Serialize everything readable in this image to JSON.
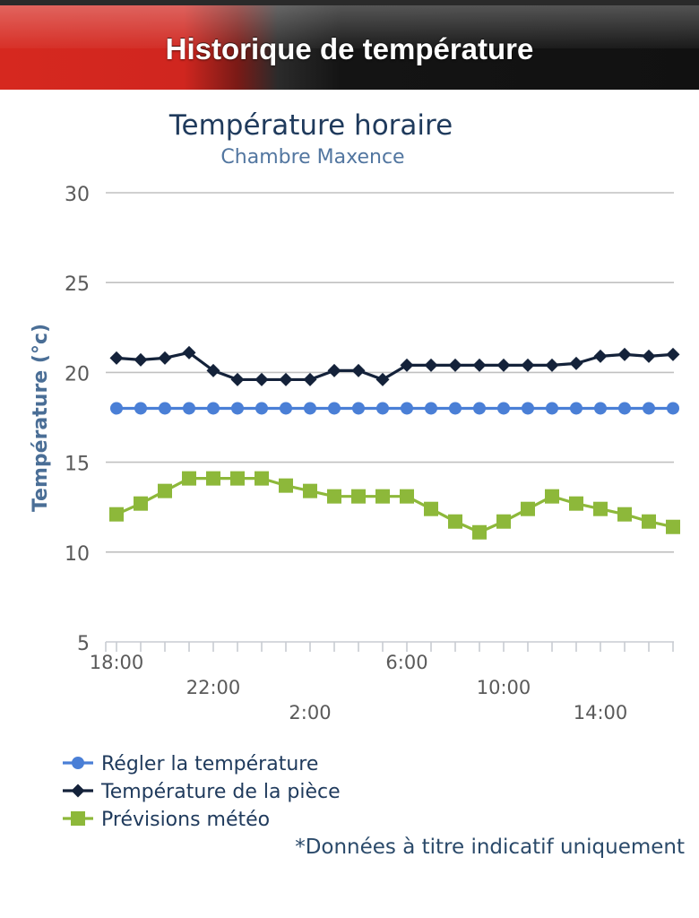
{
  "header": {
    "title": "Historique de température"
  },
  "chart_data": {
    "type": "line",
    "title": "Température horaire",
    "subtitle": "Chambre Maxence",
    "xlabel": "",
    "ylabel": "Température (°c)",
    "ylim": [
      5,
      30
    ],
    "yticks": [
      "5",
      "10",
      "15",
      "20",
      "25",
      "30"
    ],
    "x_tick_labels": [
      {
        "label": "18:00",
        "index": 0
      },
      {
        "label": "22:00",
        "index": 4
      },
      {
        "label": "2:00",
        "index": 8
      },
      {
        "label": "6:00",
        "index": 12
      },
      {
        "label": "10:00",
        "index": 16
      },
      {
        "label": "14:00",
        "index": 20
      }
    ],
    "series": [
      {
        "name": "Régler la température",
        "marker": "circle",
        "color": "#4a7fd6",
        "values": [
          18,
          18,
          18,
          18,
          18,
          18,
          18,
          18,
          18,
          18,
          18,
          18,
          18,
          18,
          18,
          18,
          18,
          18,
          18,
          18,
          18,
          18,
          18,
          18
        ]
      },
      {
        "name": "Température de la pièce",
        "marker": "diamond",
        "color": "#14223a",
        "values": [
          20.8,
          20.7,
          20.8,
          21.1,
          20.1,
          19.6,
          19.6,
          19.6,
          19.6,
          20.1,
          20.1,
          19.6,
          20.4,
          20.4,
          20.4,
          20.4,
          20.4,
          20.4,
          20.4,
          20.5,
          20.9,
          21.0,
          20.9,
          21.0
        ]
      },
      {
        "name": "Prévisions météo",
        "marker": "square",
        "color": "#8db83a",
        "values": [
          12.1,
          12.7,
          13.4,
          14.1,
          14.1,
          14.1,
          14.1,
          13.7,
          13.4,
          13.1,
          13.1,
          13.1,
          13.1,
          12.4,
          11.7,
          11.1,
          11.7,
          12.4,
          13.1,
          12.7,
          12.4,
          12.1,
          11.7,
          11.4
        ]
      }
    ],
    "note": "*Données à titre indicatif uniquement"
  }
}
